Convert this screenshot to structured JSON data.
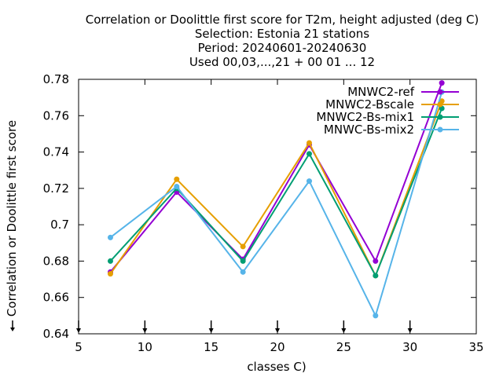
{
  "chart_data": {
    "type": "line",
    "title_lines": [
      "Correlation or Doolittle first score  for T2m, height adjusted (deg C)",
      "Selection: Estonia     21 stations",
      "Period: 20240601-20240630",
      "Used 00,03,...,21 + 00 01 ... 12"
    ],
    "xlabel": "classes C)",
    "ylabel": "Correlation or Doolittle first score",
    "xlim": [
      5,
      35
    ],
    "ylim": [
      0.64,
      0.78
    ],
    "xticks": [
      5,
      10,
      15,
      20,
      25,
      30,
      35
    ],
    "yticks": [
      0.64,
      0.66,
      0.68,
      0.7,
      0.72,
      0.74,
      0.76,
      0.78
    ],
    "ytick_labels": [
      "0.64",
      "0.66",
      "0.68",
      "0.7",
      "0.72",
      "0.74",
      "0.76",
      "0.78"
    ],
    "grid": false,
    "legend_position": "top-right",
    "x": [
      7.4,
      12.4,
      17.4,
      22.4,
      27.4,
      32.4
    ],
    "series": [
      {
        "name": "MNWC2-ref",
        "color": "#9400d3",
        "marker": "circle",
        "values": [
          0.674,
          0.718,
          0.681,
          0.744,
          0.68,
          0.778
        ]
      },
      {
        "name": "MNWC2-Bscale",
        "color": "#e69f00",
        "marker": "circle",
        "values": [
          0.673,
          0.725,
          0.688,
          0.745,
          0.672,
          0.768
        ]
      },
      {
        "name": "MNWC2-Bs-mix1",
        "color": "#009e73",
        "marker": "circle",
        "values": [
          0.68,
          0.72,
          0.68,
          0.739,
          0.672,
          0.764
        ]
      },
      {
        "name": "MNWC-Bs-mix2",
        "color": "#56b4e9",
        "marker": "circle",
        "values": [
          0.693,
          0.721,
          0.674,
          0.724,
          0.65,
          0.773
        ]
      }
    ]
  }
}
